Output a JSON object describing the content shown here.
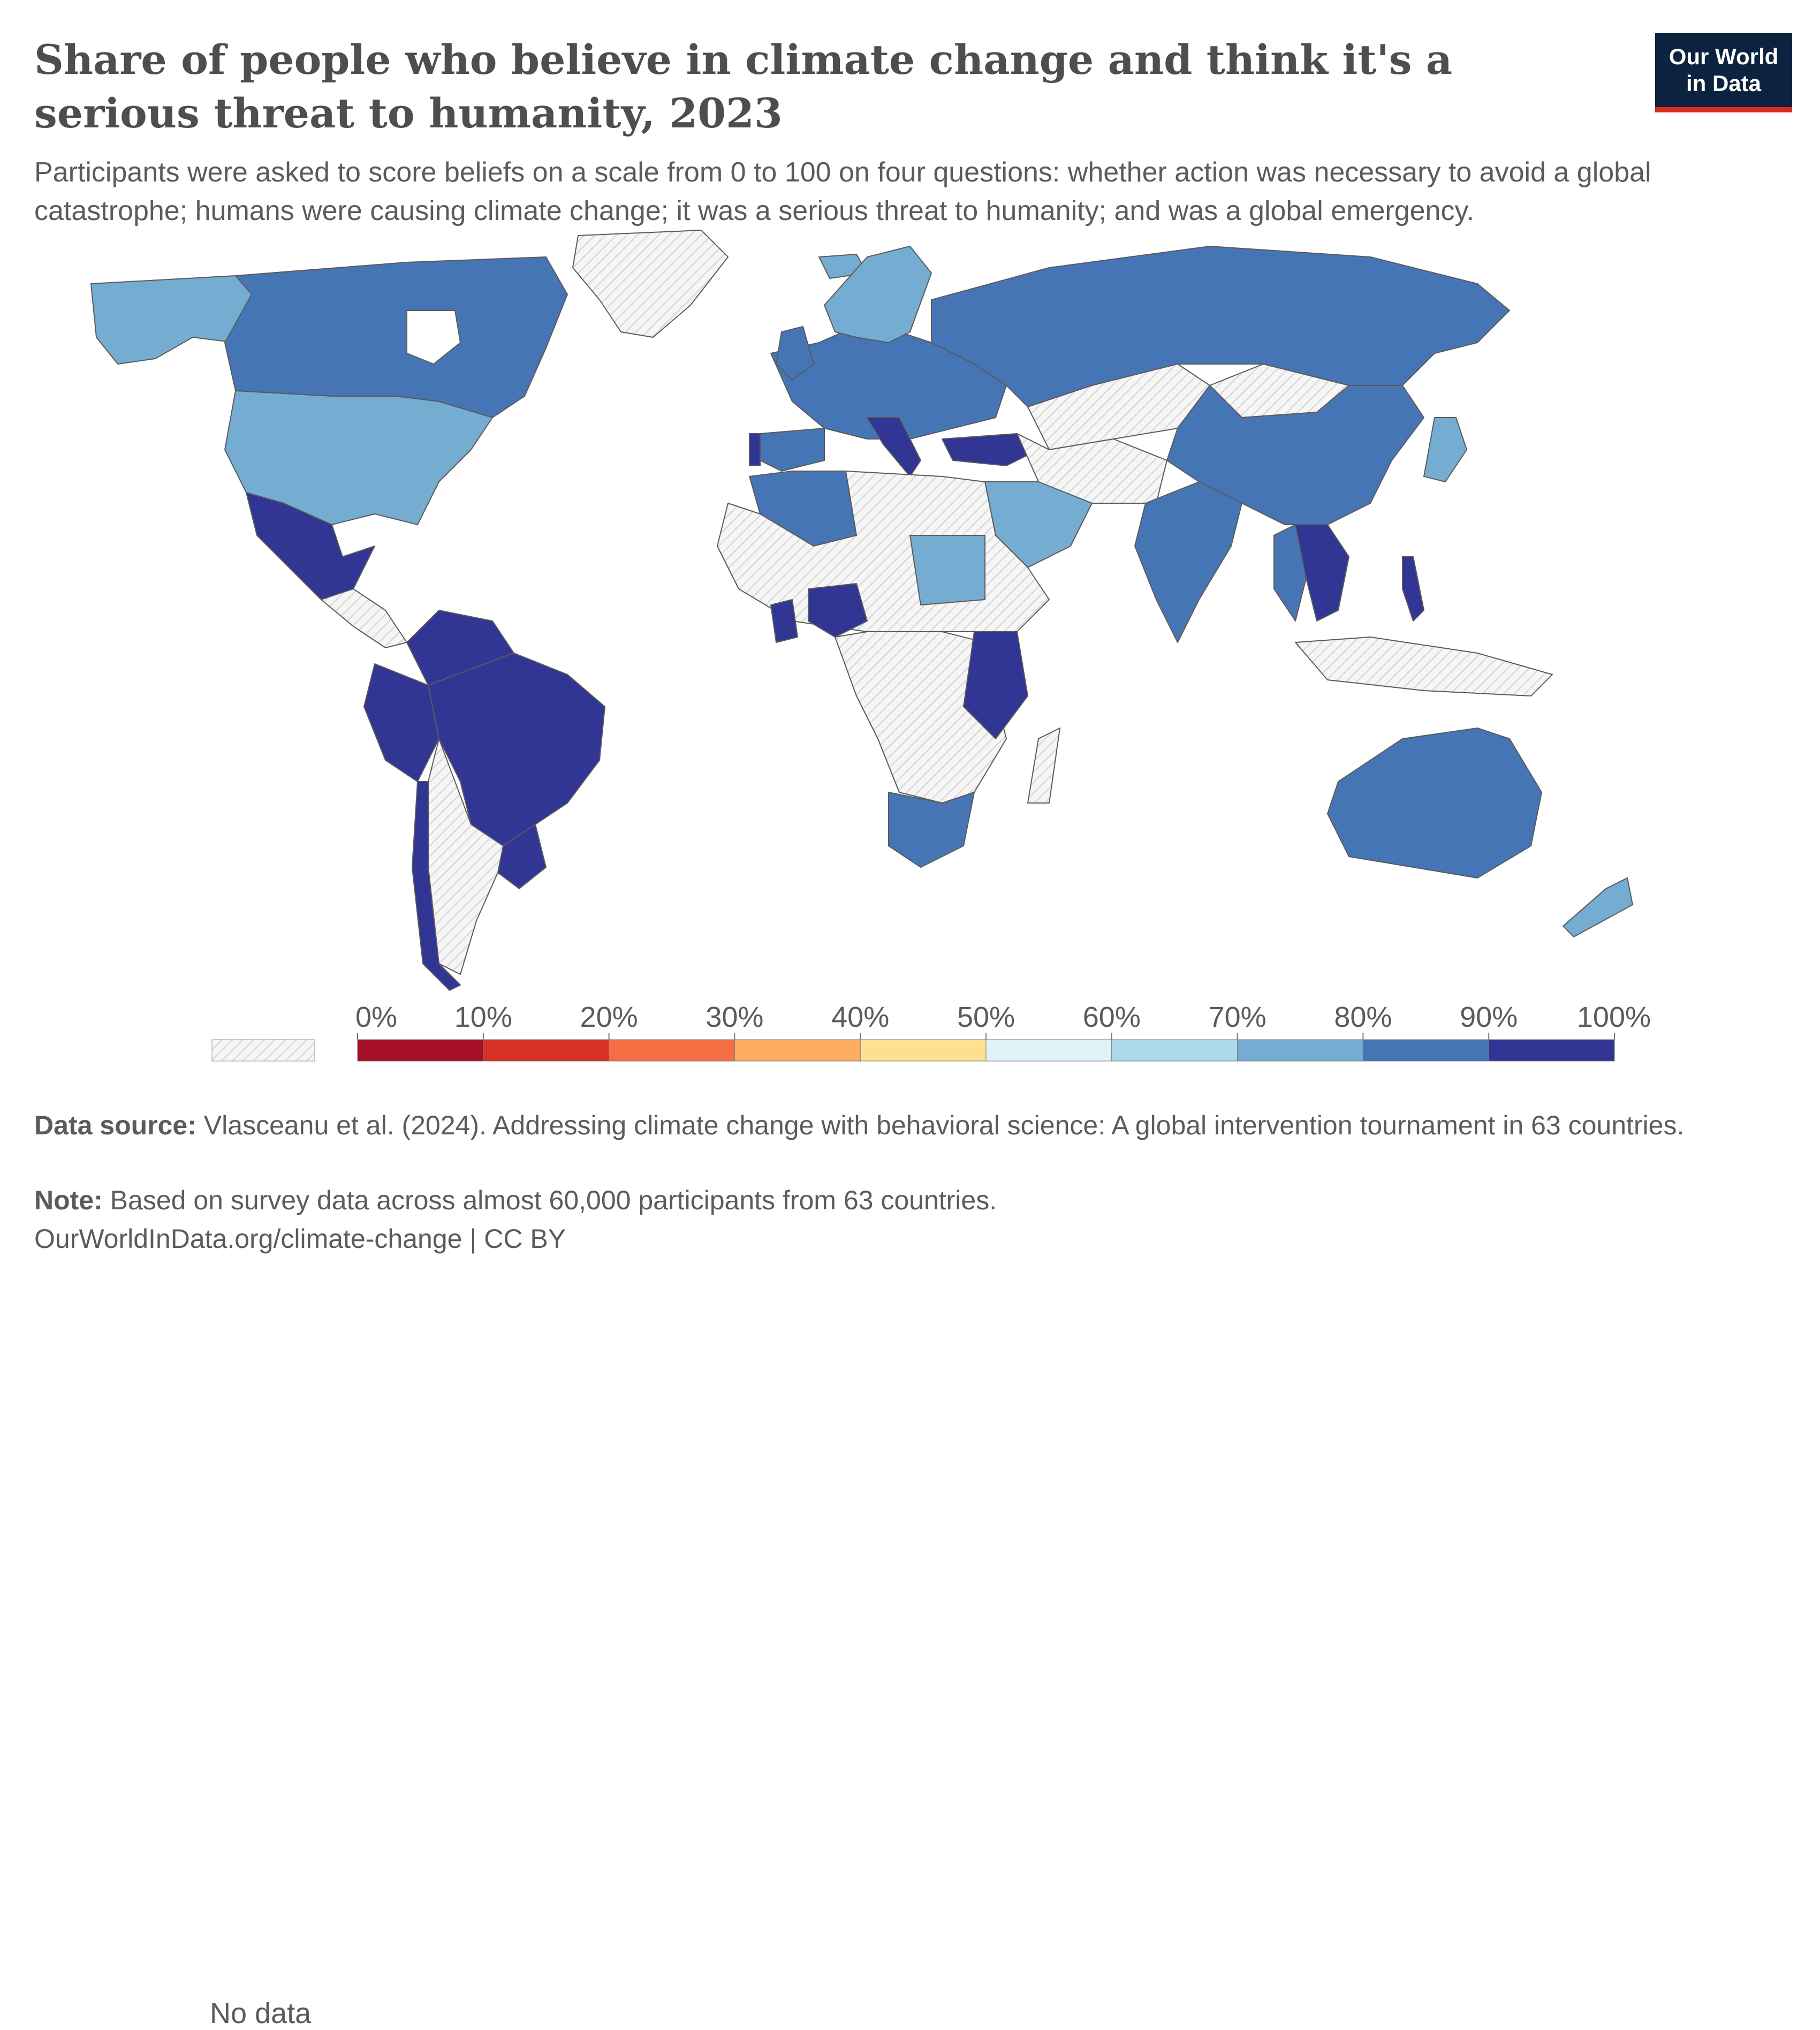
{
  "title": "Share of people who believe in climate change and think it's a serious threat to humanity, 2023",
  "subtitle": "Participants were asked to score beliefs on a scale from 0 to 100 on four questions: whether action was necessary to avoid a global catastrophe; humans were causing climate change; it was a serious threat to humanity; and was a global emergency.",
  "logo": {
    "line1": "Our World",
    "line2": "in Data"
  },
  "legend": {
    "no_data_label": "No data",
    "ticks": [
      "0%",
      "10%",
      "20%",
      "30%",
      "40%",
      "50%",
      "60%",
      "70%",
      "80%",
      "90%",
      "100%"
    ],
    "bins": [
      {
        "from": 0,
        "to": 10,
        "color": "#a50f27"
      },
      {
        "from": 10,
        "to": 20,
        "color": "#d73027"
      },
      {
        "from": 20,
        "to": 30,
        "color": "#f46d43"
      },
      {
        "from": 30,
        "to": 40,
        "color": "#fdae61"
      },
      {
        "from": 40,
        "to": 50,
        "color": "#fee090"
      },
      {
        "from": 50,
        "to": 60,
        "color": "#e0f3f8"
      },
      {
        "from": 60,
        "to": 70,
        "color": "#abd9e9"
      },
      {
        "from": 70,
        "to": 80,
        "color": "#74add1"
      },
      {
        "from": 80,
        "to": 90,
        "color": "#4575b4"
      },
      {
        "from": 90,
        "to": 100,
        "color": "#313695"
      }
    ]
  },
  "footer": {
    "source_label": "Data source:",
    "source_text": "Vlasceanu et al. (2024). Addressing climate change with behavioral science: A global intervention tournament in 63 countries.",
    "note_label": "Note:",
    "note_text": "Based on survey data across almost 60,000 participants from 63 countries.",
    "url": "OurWorldInData.org/climate-change",
    "license": "| CC BY"
  }
}
